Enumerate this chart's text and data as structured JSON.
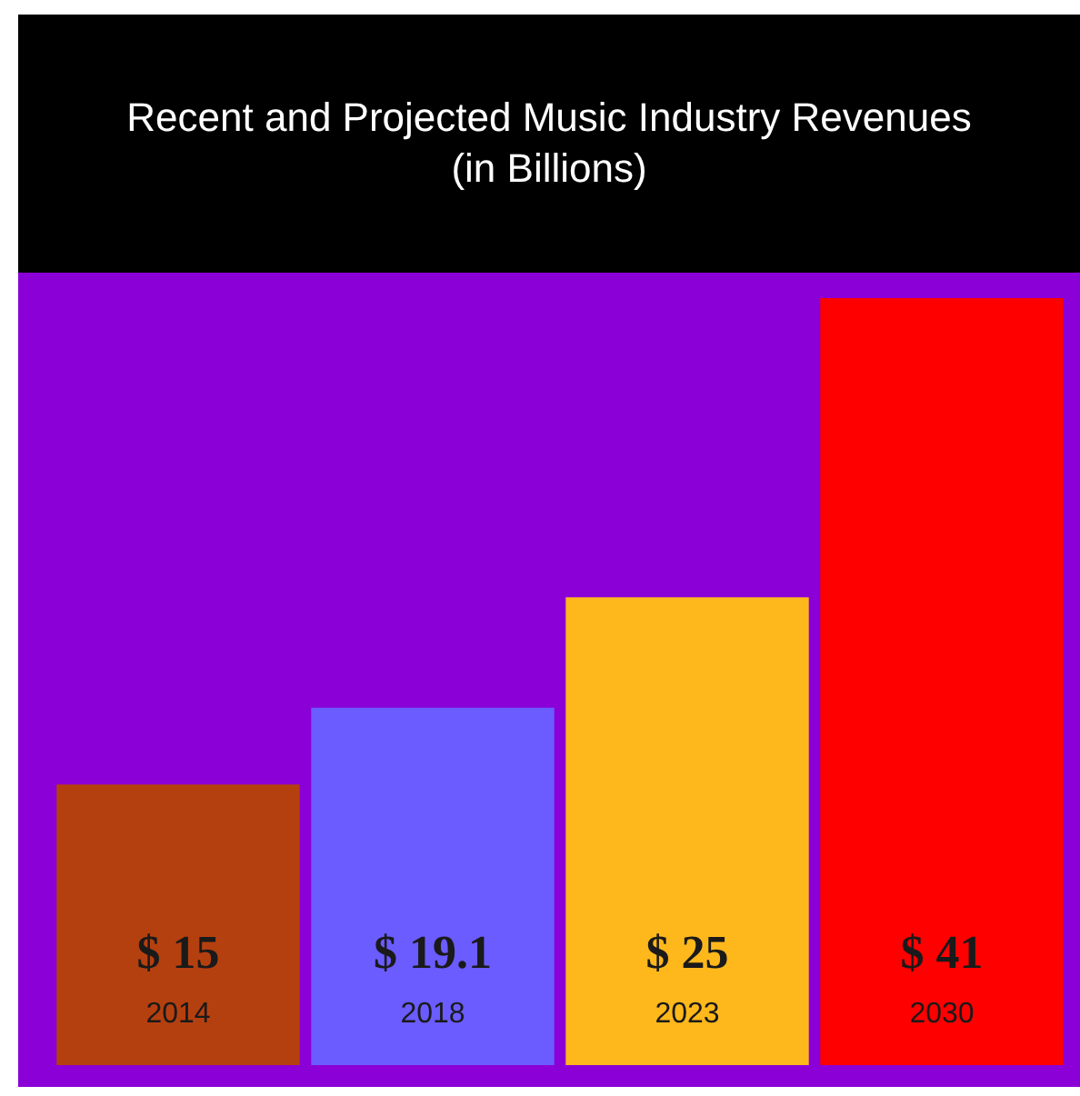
{
  "chart_data": {
    "type": "bar",
    "title": "Recent and Projected Music Industry Revenues (in Billions)",
    "categories": [
      "2014",
      "2018",
      "2023",
      "2030"
    ],
    "values": [
      15,
      19.1,
      25,
      41
    ],
    "colors": [
      "#b5400f",
      "#6b5cff",
      "#ffb81c",
      "#ff0000"
    ],
    "value_labels": [
      "$ 15",
      "$ 19.1",
      "$ 25",
      "$ 41"
    ]
  }
}
